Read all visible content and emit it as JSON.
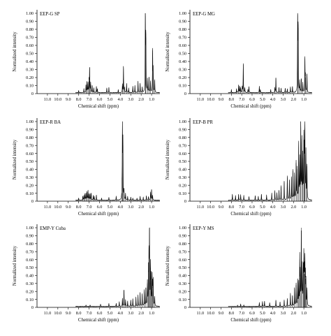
{
  "chart_data": [
    {
      "type": "line",
      "title": "EEP-G SP",
      "xlabel": "Chemical shift (ppm)",
      "ylabel": "Normalized intensity",
      "xlim": [
        12.0,
        0.2
      ],
      "ylim": [
        0,
        1.0
      ],
      "x_reversed": true,
      "xticks": [
        "11.0",
        "10.0",
        "9.0",
        "8.0",
        "7.0",
        "6.0",
        "5.0",
        "4.0",
        "3.0",
        "2.0",
        "1.0"
      ],
      "yticks": [
        "0",
        "0.10",
        "0.20",
        "0.30",
        "0.40",
        "0.50",
        "0.60",
        "0.70",
        "0.80",
        "0.90",
        "1.00"
      ],
      "grid": false,
      "peaks": [
        [
          8.0,
          0.03
        ],
        [
          7.5,
          0.05
        ],
        [
          7.3,
          0.1
        ],
        [
          7.2,
          0.14
        ],
        [
          7.1,
          0.12
        ],
        [
          7.0,
          0.16
        ],
        [
          6.95,
          0.32
        ],
        [
          6.85,
          0.12
        ],
        [
          6.7,
          0.09
        ],
        [
          6.55,
          0.06
        ],
        [
          6.3,
          0.08
        ],
        [
          6.2,
          0.05
        ],
        [
          5.3,
          0.06
        ],
        [
          5.1,
          0.07
        ],
        [
          4.2,
          0.04
        ],
        [
          3.8,
          0.1
        ],
        [
          3.7,
          0.34
        ],
        [
          3.6,
          0.06
        ],
        [
          3.4,
          0.12
        ],
        [
          3.2,
          0.06
        ],
        [
          2.8,
          0.08
        ],
        [
          2.6,
          0.09
        ],
        [
          2.3,
          0.14
        ],
        [
          2.1,
          0.12
        ],
        [
          1.9,
          0.07
        ],
        [
          1.6,
          1.0
        ],
        [
          1.55,
          0.7
        ],
        [
          1.4,
          0.16
        ],
        [
          1.25,
          0.2
        ],
        [
          1.1,
          0.14
        ],
        [
          0.9,
          0.54
        ],
        [
          0.85,
          0.28
        ],
        [
          0.7,
          0.16
        ]
      ]
    },
    {
      "type": "line",
      "title": "EEP-G MG",
      "xlabel": "Chemical shift (ppm)",
      "ylabel": "Normalized intensity",
      "xlim": [
        12.0,
        0.2
      ],
      "ylim": [
        0,
        1.0
      ],
      "x_reversed": true,
      "xticks": [
        "11.0",
        "10.0",
        "9.0",
        "8.0",
        "7.0",
        "6.0",
        "5.0",
        "4.0",
        "3.0",
        "2.0",
        "1.0"
      ],
      "yticks": [
        "0",
        "0.10",
        "0.20",
        "0.30",
        "0.40",
        "0.50",
        "0.60",
        "0.70",
        "0.80",
        "0.90",
        "1.00"
      ],
      "grid": false,
      "peaks": [
        [
          8.0,
          0.04
        ],
        [
          7.5,
          0.05
        ],
        [
          7.3,
          0.1
        ],
        [
          7.2,
          0.08
        ],
        [
          7.1,
          0.06
        ],
        [
          6.95,
          0.08
        ],
        [
          6.85,
          0.36
        ],
        [
          6.7,
          0.06
        ],
        [
          6.4,
          0.04
        ],
        [
          6.3,
          0.08
        ],
        [
          5.3,
          0.08
        ],
        [
          5.2,
          0.04
        ],
        [
          4.2,
          0.04
        ],
        [
          3.8,
          0.06
        ],
        [
          3.7,
          0.19
        ],
        [
          3.4,
          0.07
        ],
        [
          3.2,
          0.06
        ],
        [
          2.8,
          0.06
        ],
        [
          2.6,
          0.05
        ],
        [
          2.3,
          0.07
        ],
        [
          2.1,
          0.08
        ],
        [
          1.6,
          1.0
        ],
        [
          1.55,
          0.82
        ],
        [
          1.4,
          0.14
        ],
        [
          1.25,
          0.18
        ],
        [
          1.1,
          0.12
        ],
        [
          0.9,
          0.44
        ],
        [
          0.85,
          0.2
        ],
        [
          0.7,
          0.24
        ]
      ]
    },
    {
      "type": "line",
      "title": "EEP-R BA",
      "xlabel": "Chemical shift (ppm)",
      "ylabel": "Normalized intensity",
      "xlim": [
        12.0,
        0.2
      ],
      "ylim": [
        0,
        1.0
      ],
      "x_reversed": true,
      "xticks": [
        "11.0",
        "10.0",
        "9.0",
        "8.0",
        "7.0",
        "6.0",
        "5.0",
        "4.0",
        "3.0",
        "2.0",
        "1.0"
      ],
      "yticks": [
        "0",
        "0.10",
        "0.20",
        "0.30",
        "0.40",
        "0.50",
        "0.60",
        "0.70",
        "0.80",
        "0.90",
        "1.00"
      ],
      "grid": false,
      "peaks": [
        [
          8.0,
          0.03
        ],
        [
          7.6,
          0.05
        ],
        [
          7.5,
          0.06
        ],
        [
          7.4,
          0.08
        ],
        [
          7.3,
          0.09
        ],
        [
          7.2,
          0.11
        ],
        [
          7.1,
          0.12
        ],
        [
          7.0,
          0.08
        ],
        [
          6.9,
          0.08
        ],
        [
          6.8,
          0.09
        ],
        [
          6.6,
          0.06
        ],
        [
          6.5,
          0.05
        ],
        [
          6.3,
          0.07
        ],
        [
          5.8,
          0.03
        ],
        [
          5.1,
          0.04
        ],
        [
          4.4,
          0.05
        ],
        [
          3.85,
          0.1
        ],
        [
          3.8,
          1.0
        ],
        [
          3.75,
          0.7
        ],
        [
          3.65,
          0.12
        ],
        [
          3.5,
          0.08
        ],
        [
          3.3,
          0.05
        ],
        [
          3.0,
          0.04
        ],
        [
          2.8,
          0.03
        ],
        [
          2.4,
          0.03
        ],
        [
          2.1,
          0.05
        ],
        [
          1.8,
          0.04
        ],
        [
          1.5,
          0.06
        ],
        [
          1.3,
          0.05
        ],
        [
          1.1,
          0.1
        ],
        [
          1.0,
          0.14
        ],
        [
          0.9,
          0.06
        ]
      ]
    },
    {
      "type": "line",
      "title": "EEP-B PR",
      "xlabel": "Chemical shift (ppm)",
      "ylabel": "Normalized intensity",
      "xlim": [
        12.0,
        0.2
      ],
      "ylim": [
        0,
        1.0
      ],
      "x_reversed": true,
      "xticks": [
        "11.0",
        "10.0",
        "9.0",
        "8.0",
        "7.0",
        "6.0",
        "5.0",
        "4.0",
        "3.0",
        "2.0",
        "1.0"
      ],
      "yticks": [
        "0",
        "0.10",
        "0.20",
        "0.30",
        "0.40",
        "0.50",
        "0.60",
        "0.70",
        "0.80",
        "0.90",
        "1.00"
      ],
      "grid": false,
      "peaks": [
        [
          7.9,
          0.08
        ],
        [
          7.6,
          0.06
        ],
        [
          7.3,
          0.08
        ],
        [
          7.1,
          0.07
        ],
        [
          6.8,
          0.06
        ],
        [
          6.3,
          0.05
        ],
        [
          5.7,
          0.06
        ],
        [
          5.4,
          0.05
        ],
        [
          5.1,
          0.08
        ],
        [
          4.6,
          0.07
        ],
        [
          4.1,
          0.09
        ],
        [
          3.8,
          0.12
        ],
        [
          3.6,
          0.1
        ],
        [
          3.4,
          0.13
        ],
        [
          3.2,
          0.18
        ],
        [
          2.9,
          0.24
        ],
        [
          2.6,
          0.3
        ],
        [
          2.4,
          0.26
        ],
        [
          2.2,
          0.3
        ],
        [
          2.05,
          0.38
        ],
        [
          1.9,
          0.34
        ],
        [
          1.75,
          0.48
        ],
        [
          1.65,
          0.4
        ],
        [
          1.5,
          0.74
        ],
        [
          1.4,
          0.5
        ],
        [
          1.3,
          1.0
        ],
        [
          1.2,
          0.78
        ],
        [
          1.1,
          0.54
        ],
        [
          1.0,
          0.8
        ],
        [
          0.95,
          0.58
        ],
        [
          0.9,
          0.92
        ],
        [
          0.8,
          0.6
        ],
        [
          0.7,
          0.44
        ]
      ]
    },
    {
      "type": "line",
      "title": "EMP-Y Cuba",
      "xlabel": "Chemical shift (ppm)",
      "ylabel": "Normalized intensity",
      "xlim": [
        12.0,
        0.2
      ],
      "ylim": [
        0,
        1.0
      ],
      "x_reversed": true,
      "xticks": [
        "11.0",
        "10.0",
        "9.0",
        "8.0",
        "7.0",
        "6.0",
        "5.0",
        "4.0",
        "3.0",
        "2.0",
        "1.0"
      ],
      "yticks": [
        "0",
        "0.10",
        "0.20",
        "0.30",
        "0.40",
        "0.50",
        "0.60",
        "0.70",
        "0.80",
        "0.90",
        "1.00"
      ],
      "grid": false,
      "peaks": [
        [
          7.3,
          0.02
        ],
        [
          6.9,
          0.02
        ],
        [
          5.9,
          0.03
        ],
        [
          5.1,
          0.04
        ],
        [
          4.4,
          0.04
        ],
        [
          4.1,
          0.06
        ],
        [
          3.8,
          0.1
        ],
        [
          3.65,
          0.22
        ],
        [
          3.5,
          0.08
        ],
        [
          3.3,
          0.07
        ],
        [
          3.0,
          0.08
        ],
        [
          2.8,
          0.1
        ],
        [
          2.5,
          0.12
        ],
        [
          2.3,
          0.14
        ],
        [
          2.1,
          0.18
        ],
        [
          1.9,
          0.16
        ],
        [
          1.7,
          0.2
        ],
        [
          1.55,
          0.24
        ],
        [
          1.4,
          0.3
        ],
        [
          1.3,
          0.46
        ],
        [
          1.25,
          0.62
        ],
        [
          1.2,
          1.0
        ],
        [
          1.1,
          0.5
        ],
        [
          1.05,
          0.34
        ],
        [
          0.95,
          0.4
        ],
        [
          0.9,
          0.26
        ],
        [
          0.85,
          0.32
        ],
        [
          0.7,
          0.12
        ]
      ]
    },
    {
      "type": "line",
      "title": "EEP-Y MS",
      "xlabel": "Chemical shift (ppm)",
      "ylabel": "Normalized intensity",
      "xlim": [
        12.0,
        0.2
      ],
      "ylim": [
        0,
        1.0
      ],
      "x_reversed": true,
      "xticks": [
        "11.0",
        "10.0",
        "9.0",
        "8.0",
        "7.0",
        "6.0",
        "5.0",
        "4.0",
        "3.0",
        "2.0",
        "1.0"
      ],
      "yticks": [
        "0",
        "0.10",
        "0.20",
        "0.30",
        "0.40",
        "0.50",
        "0.60",
        "0.70",
        "0.80",
        "0.90",
        "1.00"
      ],
      "grid": false,
      "peaks": [
        [
          7.4,
          0.02
        ],
        [
          7.1,
          0.03
        ],
        [
          6.8,
          0.02
        ],
        [
          5.3,
          0.05
        ],
        [
          5.0,
          0.06
        ],
        [
          4.8,
          0.07
        ],
        [
          4.3,
          0.05
        ],
        [
          3.7,
          0.08
        ],
        [
          3.3,
          0.06
        ],
        [
          2.9,
          0.08
        ],
        [
          2.6,
          0.1
        ],
        [
          2.3,
          0.16
        ],
        [
          2.1,
          0.14
        ],
        [
          1.9,
          0.24
        ],
        [
          1.75,
          0.28
        ],
        [
          1.6,
          0.34
        ],
        [
          1.5,
          0.3
        ],
        [
          1.4,
          0.6
        ],
        [
          1.35,
          0.38
        ],
        [
          1.25,
          1.0
        ],
        [
          1.15,
          0.5
        ],
        [
          1.05,
          0.44
        ],
        [
          1.0,
          0.62
        ],
        [
          0.95,
          0.42
        ],
        [
          0.9,
          0.56
        ],
        [
          0.85,
          0.36
        ],
        [
          0.8,
          0.3
        ],
        [
          0.7,
          0.22
        ]
      ]
    }
  ]
}
